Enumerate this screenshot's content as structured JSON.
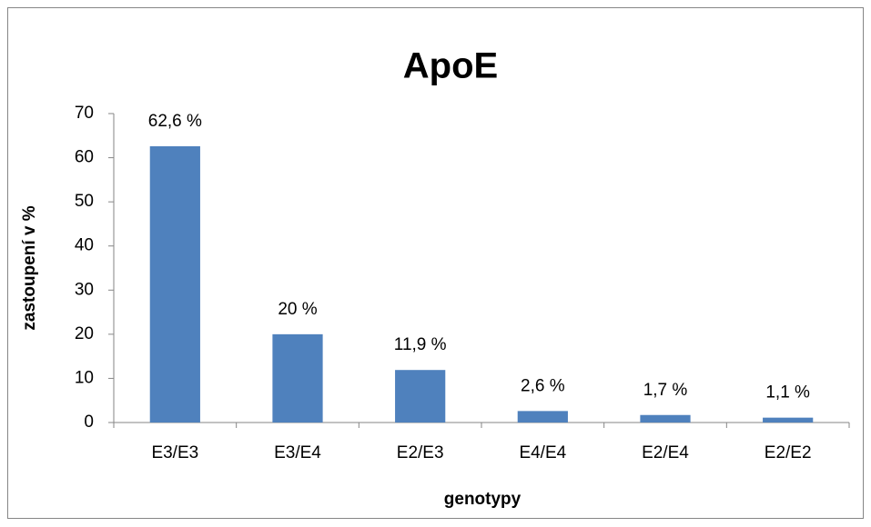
{
  "chart_data": {
    "type": "bar",
    "title": "ApoE",
    "x_label": "genotypy",
    "y_label": "zastoupení v %",
    "categories": [
      "E3/E3",
      "E3/E4",
      "E2/E3",
      "E4/E4",
      "E2/E4",
      "E2/E2"
    ],
    "values": [
      62.6,
      20,
      11.9,
      2.6,
      1.7,
      1.1
    ],
    "value_labels": [
      "62,6 %",
      "20 %",
      "11,9 %",
      "2,6 %",
      "1,7 %",
      "1,1 %"
    ],
    "color": "#4f81bd",
    "ylim": [
      0,
      70
    ],
    "yticks": [
      0,
      10,
      20,
      30,
      40,
      50,
      60,
      70
    ],
    "grid": false
  }
}
